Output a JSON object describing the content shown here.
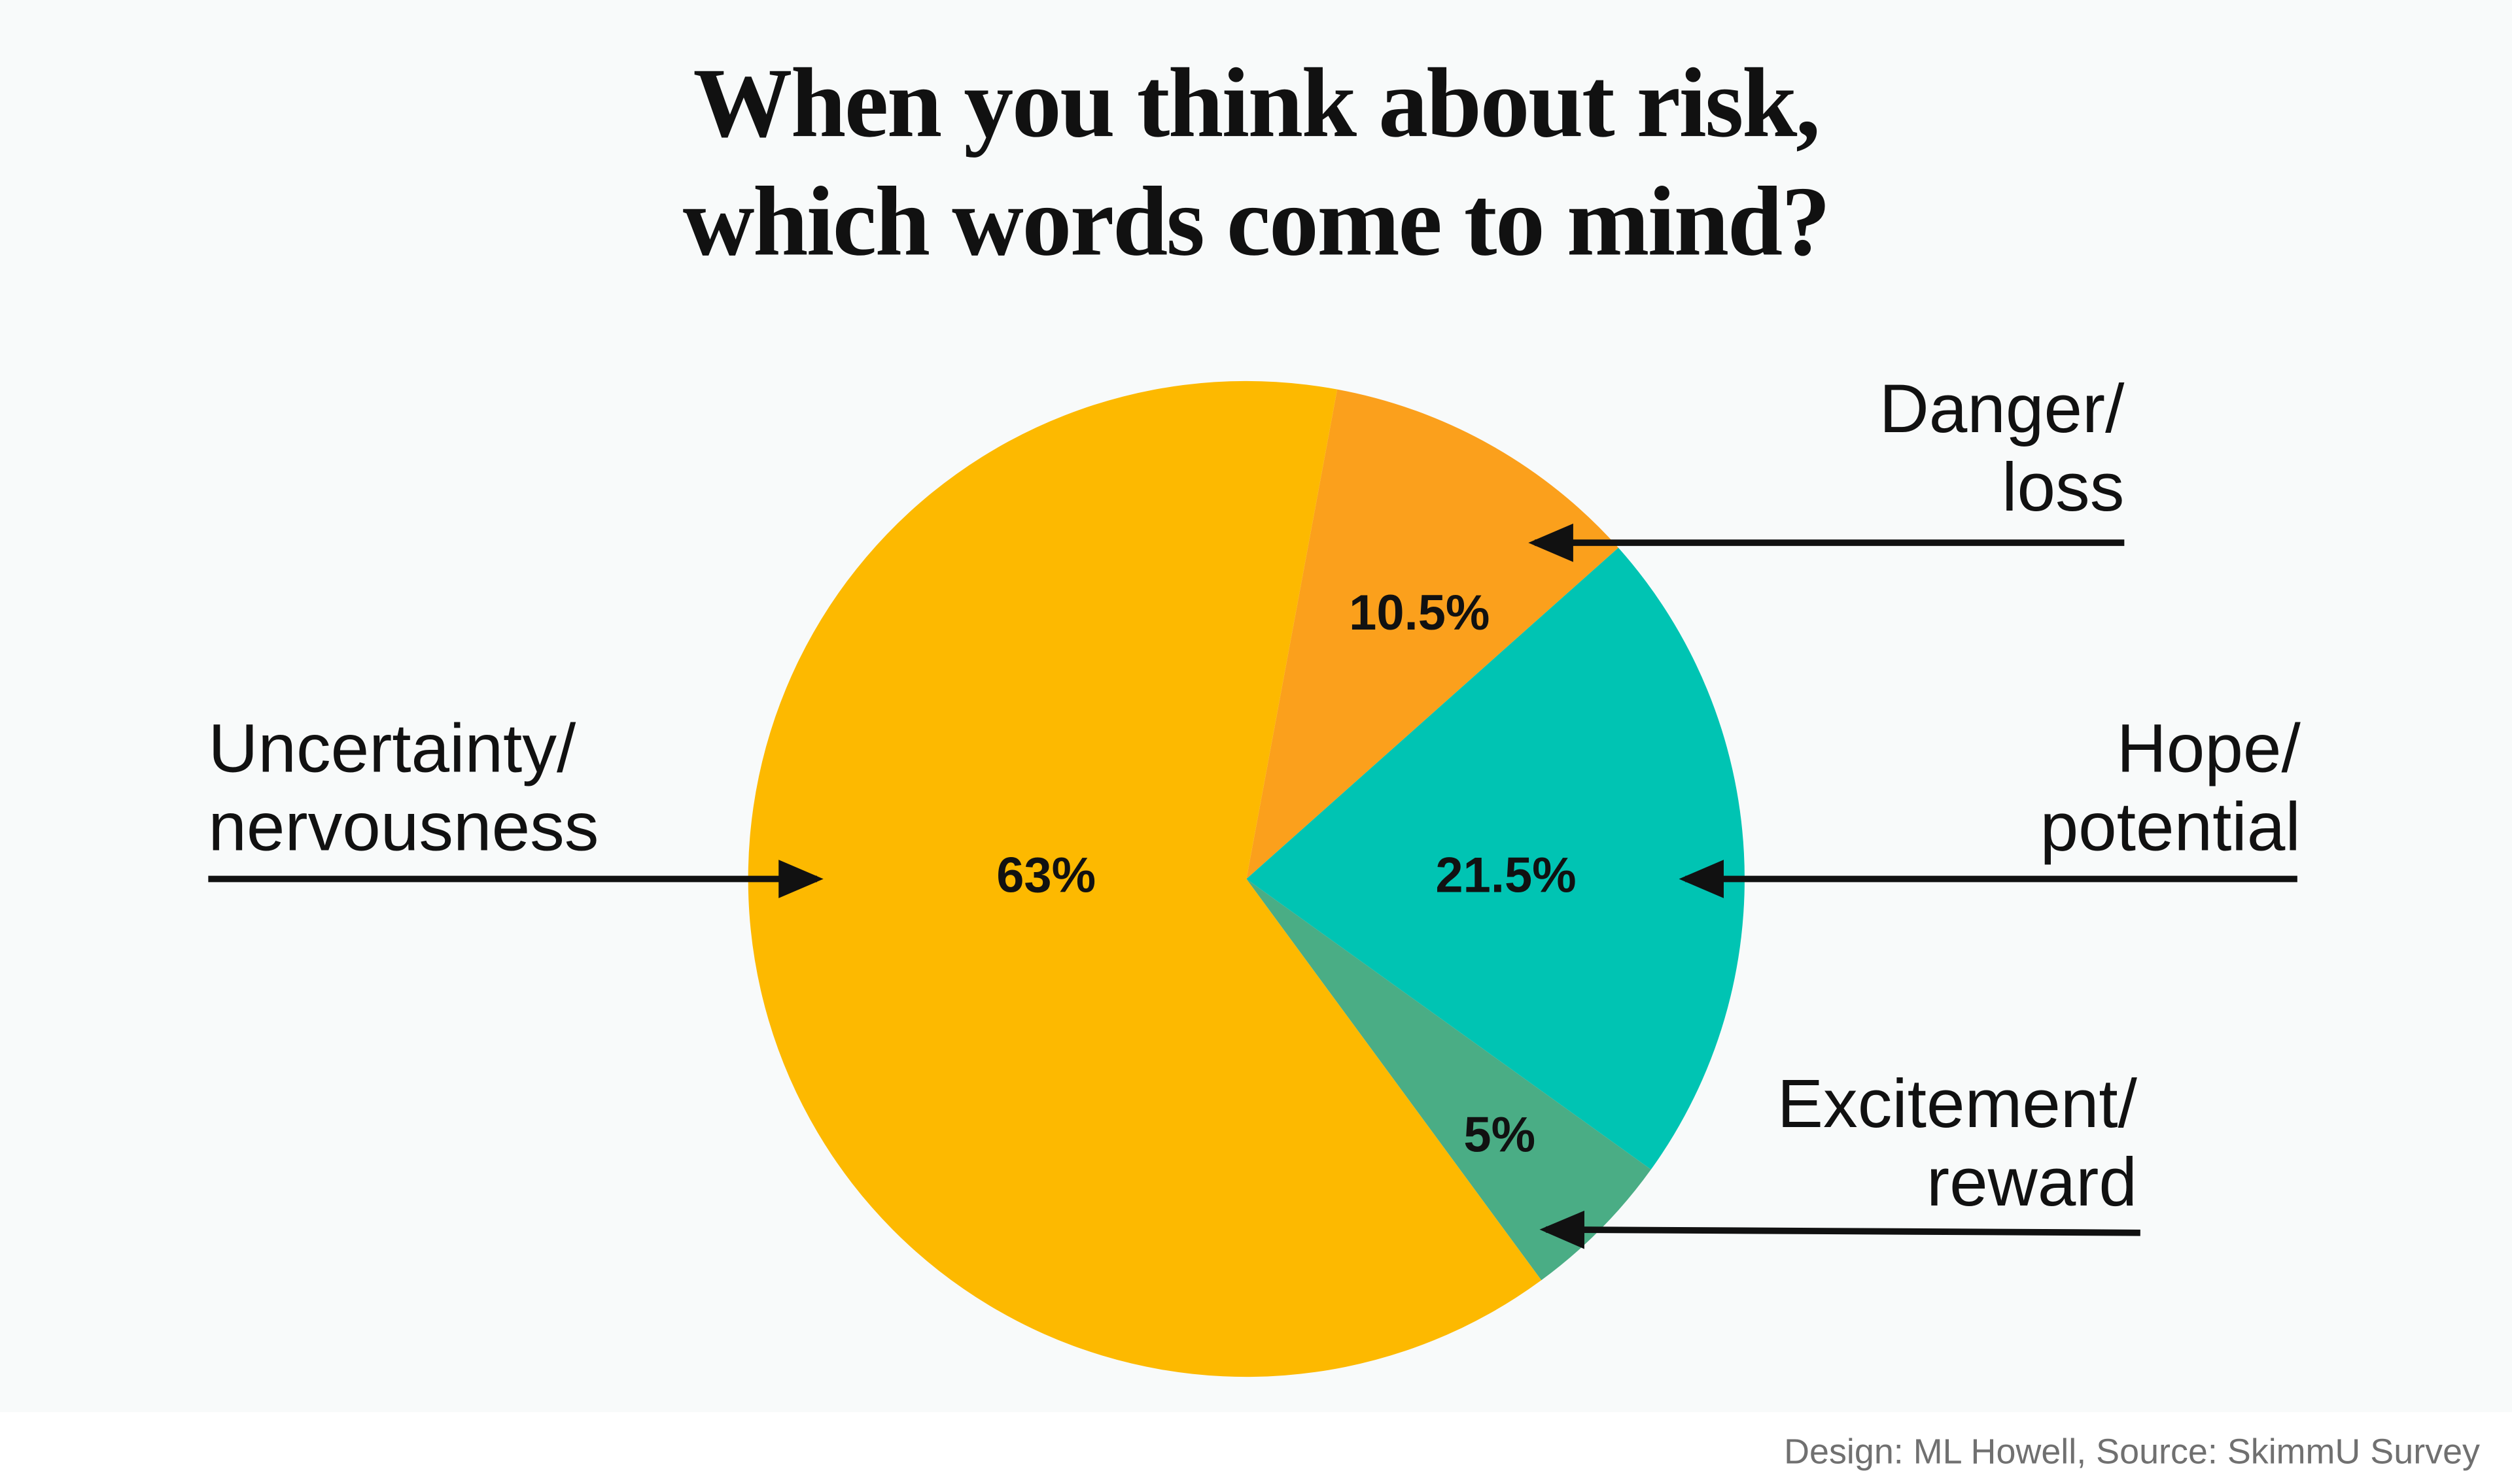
{
  "chart_data": {
    "type": "pie",
    "title": "When you think about risk,\nwhich words come to mind?",
    "categories": [
      "Danger/\nloss",
      "Hope/\npotential",
      "Excitement/\nreward",
      "Uncertainty/\nnervousness"
    ],
    "values": [
      10.5,
      21.5,
      5,
      63
    ],
    "value_labels": [
      "10.5%",
      "21.5%",
      "5%",
      "63%"
    ],
    "colors": [
      "#fba01c",
      "#00c4b3",
      "#4aad85",
      "#fdb900"
    ],
    "source": "Design: ML Howell, Source: SkimmU Survey"
  }
}
